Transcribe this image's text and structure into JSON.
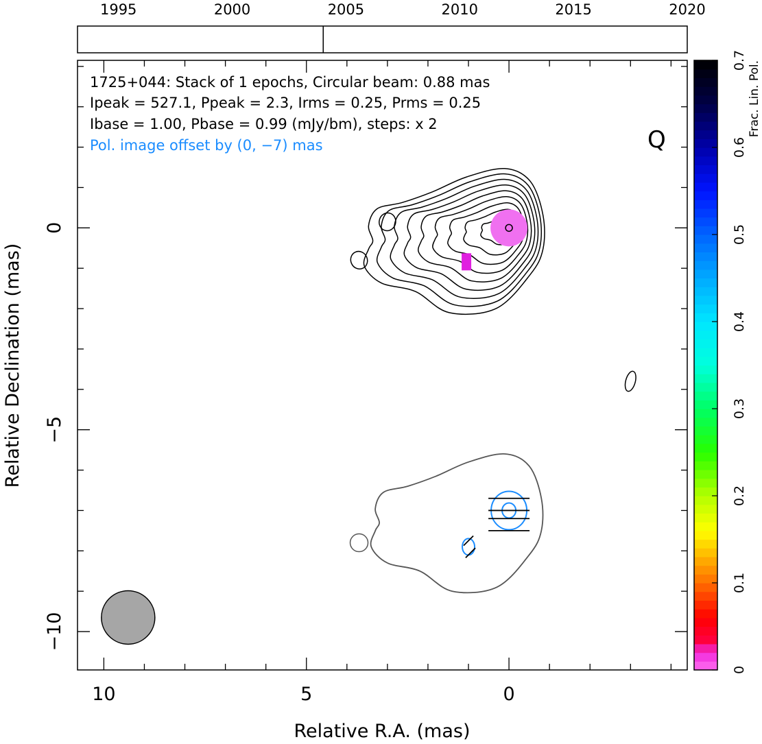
{
  "chart_data": {
    "type": "contour",
    "title": "1725+044: Stack of 1 epochs, Circular beam: 0.88 mas",
    "info_lines": [
      "Ipeak = 527.1, Ppeak = 2.3, Irms = 0.25, Prms = 0.25",
      "Ibase = 1.00, Pbase = 0.99 (mJy/bm), steps: x 2"
    ],
    "offset_note": "Pol. image offset by (0, −7) mas",
    "band_label": "Q",
    "xlabel": "Relative R.A. (mas)",
    "ylabel": "Relative Declination (mas)",
    "xlim": [
      10.65,
      -4.4
    ],
    "ylim": [
      -10.95,
      4.15
    ],
    "xticks_major": [
      10,
      5,
      0
    ],
    "xtick_labels": [
      "10",
      "5",
      "0"
    ],
    "yticks_major": [
      0,
      -5,
      -10
    ],
    "ytick_labels": [
      "0",
      "−5",
      "−10"
    ],
    "timeline": {
      "xlim": [
        1993.2,
        2020.0
      ],
      "ticks": [
        1995,
        2000,
        2005,
        2010,
        2015,
        2020
      ],
      "tick_labels": [
        "1995",
        "2000",
        "2005",
        "2010",
        "2015",
        "2020"
      ],
      "epochs": [
        2004.0
      ]
    },
    "colorbar": {
      "label": "Frac. Lin. Pol.",
      "range": [
        0,
        0.7
      ],
      "ticks": [
        0,
        0.1,
        0.2,
        0.3,
        0.4,
        0.5,
        0.6,
        0.7
      ],
      "tick_labels": [
        "0",
        "0.1",
        "0.2",
        "0.3",
        "0.4",
        "0.5",
        "0.6",
        "0.7"
      ]
    },
    "beam": {
      "x": 9.4,
      "y": -9.65,
      "diameter_mas": 0.88
    },
    "total_intensity": {
      "core": {
        "x": 0.0,
        "y": 0.0
      },
      "contour_levels_mJy": [
        1,
        2,
        4,
        8,
        16,
        32,
        64,
        128,
        256,
        512
      ],
      "outer_contour_points": [
        [
          3.3,
          0.05
        ],
        [
          3.1,
          0.45
        ],
        [
          2.5,
          0.6
        ],
        [
          1.8,
          0.85
        ],
        [
          1.0,
          1.2
        ],
        [
          0.1,
          1.4
        ],
        [
          -0.5,
          1.1
        ],
        [
          -0.8,
          0.3
        ],
        [
          -0.8,
          -0.5
        ],
        [
          -0.5,
          -1.1
        ],
        [
          0.3,
          -1.9
        ],
        [
          1.4,
          -2.0
        ],
        [
          2.2,
          -1.5
        ],
        [
          3.0,
          -1.3
        ],
        [
          3.4,
          -0.9
        ],
        [
          3.3,
          -0.5
        ],
        [
          3.2,
          -0.3
        ]
      ],
      "islands": [
        {
          "x": 3.0,
          "y": 0.15
        },
        {
          "x": 3.7,
          "y": -0.8
        },
        {
          "x": -3.0,
          "y": -3.8
        }
      ]
    },
    "frac_pol_pixels": [
      {
        "x": 0.0,
        "y": 0.0,
        "value": 0.02
      },
      {
        "x": 1.05,
        "y": -0.9,
        "value": 0.04
      }
    ],
    "pol_offset_mas": [
      0,
      -7
    ],
    "pol_contours": {
      "peak_x": 0.0,
      "peak_y": -7.0,
      "levels_mJy": [
        0.99,
        1.98
      ]
    },
    "evpa_segments": [
      {
        "x": 0.0,
        "y": -6.7,
        "angle_deg": 0
      },
      {
        "x": 0.0,
        "y": -7.0,
        "angle_deg": 0
      },
      {
        "x": 0.0,
        "y": -7.2,
        "angle_deg": 0
      },
      {
        "x": 0.0,
        "y": -7.5,
        "angle_deg": 0
      },
      {
        "x": 1.0,
        "y": -7.75,
        "angle_deg": 45
      },
      {
        "x": 0.95,
        "y": -8.05,
        "angle_deg": 45
      }
    ],
    "colors": {
      "contour": "#000000",
      "pol_contour": "#1a8cff",
      "offset_contour": "#555555",
      "beam_fill": "#a6a6a6",
      "core_pol": "#f070f0",
      "knot_pol": "#e020e0",
      "offset_note": "#1a8cff"
    }
  }
}
